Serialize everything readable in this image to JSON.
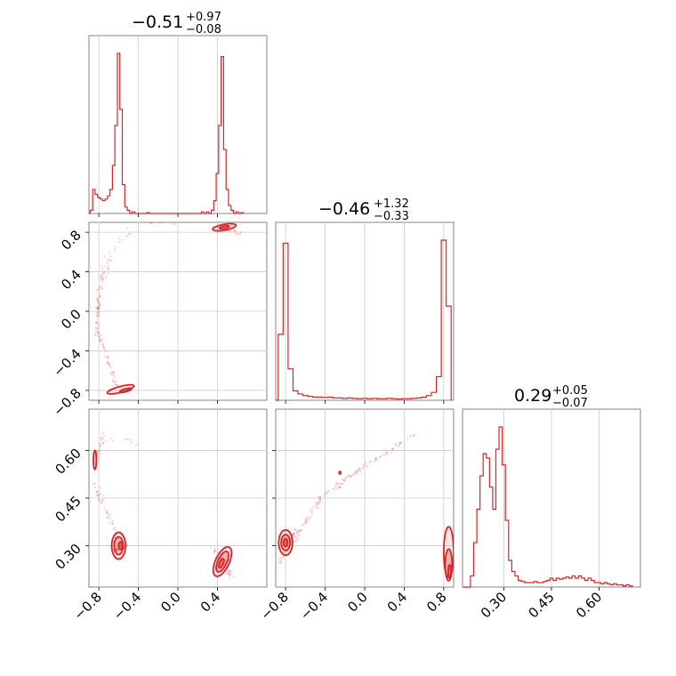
{
  "chart_data": {
    "type": "corner",
    "color": "#d62728",
    "parameters": [
      {
        "range": [
          -0.9,
          0.9
        ],
        "ticks": [
          -0.8,
          -0.4,
          0.0,
          0.4
        ],
        "tick_labels": [
          "−0.8",
          "−0.4",
          "0.0",
          "0.4"
        ],
        "title": {
          "median": "−0.51",
          "plus": "+0.97",
          "minus": "−0.08"
        },
        "hist_bin_width": 0.025,
        "hist": [
          [
            -0.875,
            0.02
          ],
          [
            -0.85,
            0.15
          ],
          [
            -0.825,
            0.12
          ],
          [
            -0.8,
            0.1
          ],
          [
            -0.775,
            0.09
          ],
          [
            -0.75,
            0.08
          ],
          [
            -0.725,
            0.09
          ],
          [
            -0.7,
            0.11
          ],
          [
            -0.675,
            0.15
          ],
          [
            -0.65,
            0.3
          ],
          [
            -0.625,
            0.55
          ],
          [
            -0.6,
            1.0
          ],
          [
            -0.575,
            0.65
          ],
          [
            -0.55,
            0.18
          ],
          [
            -0.525,
            0.04
          ],
          [
            -0.5,
            0.02
          ],
          [
            -0.45,
            0.01
          ],
          [
            -0.3,
            0.005
          ],
          [
            0.25,
            0.01
          ],
          [
            0.3,
            0.01
          ],
          [
            0.35,
            0.02
          ],
          [
            0.375,
            0.08
          ],
          [
            0.4,
            0.25
          ],
          [
            0.425,
            0.55
          ],
          [
            0.45,
            0.98
          ],
          [
            0.475,
            0.4
          ],
          [
            0.5,
            0.15
          ],
          [
            0.525,
            0.05
          ],
          [
            0.55,
            0.02
          ],
          [
            0.6,
            0.01
          ],
          [
            0.65,
            0.005
          ]
        ]
      },
      {
        "range": [
          -0.9,
          0.9
        ],
        "ticks": [
          -0.8,
          -0.4,
          0.0,
          0.4,
          0.8
        ],
        "tick_labels": [
          "−0.8",
          "−0.4",
          "0.0",
          "0.4",
          "0.8"
        ],
        "title": {
          "median": "−0.46",
          "plus": "+1.32",
          "minus": "−0.33"
        },
        "hist_bin_width": 0.05,
        "hist": [
          [
            -0.85,
            0.42
          ],
          [
            -0.8,
            1.0
          ],
          [
            -0.75,
            0.2
          ],
          [
            -0.7,
            0.06
          ],
          [
            -0.65,
            0.04
          ],
          [
            -0.6,
            0.03
          ],
          [
            -0.55,
            0.025
          ],
          [
            -0.5,
            0.02
          ],
          [
            -0.45,
            0.02
          ],
          [
            -0.4,
            0.018
          ],
          [
            -0.35,
            0.02
          ],
          [
            -0.3,
            0.015
          ],
          [
            -0.25,
            0.015
          ],
          [
            -0.2,
            0.012
          ],
          [
            -0.15,
            0.015
          ],
          [
            -0.1,
            0.012
          ],
          [
            -0.05,
            0.01
          ],
          [
            0.0,
            0.012
          ],
          [
            0.05,
            0.01
          ],
          [
            0.1,
            0.012
          ],
          [
            0.15,
            0.01
          ],
          [
            0.2,
            0.01
          ],
          [
            0.25,
            0.012
          ],
          [
            0.3,
            0.01
          ],
          [
            0.35,
            0.008
          ],
          [
            0.4,
            0.01
          ],
          [
            0.45,
            0.01
          ],
          [
            0.5,
            0.012
          ],
          [
            0.55,
            0.015
          ],
          [
            0.6,
            0.02
          ],
          [
            0.65,
            0.03
          ],
          [
            0.7,
            0.05
          ],
          [
            0.75,
            0.15
          ],
          [
            0.8,
            1.02
          ],
          [
            0.85,
            0.6
          ]
        ]
      },
      {
        "range": [
          0.17,
          0.73
        ],
        "ticks": [
          0.3,
          0.45,
          0.6
        ],
        "tick_labels": [
          "0.30",
          "0.45",
          "0.60"
        ],
        "title": {
          "median": "0.29",
          "plus": "+0.05",
          "minus": "−0.07"
        },
        "hist_bin_width": 0.01,
        "hist": [
          [
            0.2,
            0.05
          ],
          [
            0.21,
            0.2
          ],
          [
            0.22,
            0.35
          ],
          [
            0.23,
            0.5
          ],
          [
            0.24,
            0.6
          ],
          [
            0.25,
            0.58
          ],
          [
            0.26,
            0.45
          ],
          [
            0.27,
            0.35
          ],
          [
            0.28,
            0.62
          ],
          [
            0.29,
            0.72
          ],
          [
            0.3,
            0.55
          ],
          [
            0.31,
            0.3
          ],
          [
            0.32,
            0.12
          ],
          [
            0.33,
            0.07
          ],
          [
            0.34,
            0.05
          ],
          [
            0.35,
            0.03
          ],
          [
            0.36,
            0.025
          ],
          [
            0.37,
            0.02
          ],
          [
            0.38,
            0.02
          ],
          [
            0.39,
            0.02
          ],
          [
            0.4,
            0.025
          ],
          [
            0.41,
            0.02
          ],
          [
            0.42,
            0.02
          ],
          [
            0.43,
            0.025
          ],
          [
            0.44,
            0.03
          ],
          [
            0.45,
            0.04
          ],
          [
            0.46,
            0.03
          ],
          [
            0.47,
            0.04
          ],
          [
            0.48,
            0.035
          ],
          [
            0.49,
            0.04
          ],
          [
            0.5,
            0.045
          ],
          [
            0.51,
            0.04
          ],
          [
            0.52,
            0.05
          ],
          [
            0.53,
            0.04
          ],
          [
            0.54,
            0.05
          ],
          [
            0.55,
            0.04
          ],
          [
            0.56,
            0.03
          ],
          [
            0.57,
            0.04
          ],
          [
            0.58,
            0.03
          ],
          [
            0.59,
            0.02
          ],
          [
            0.6,
            0.02
          ],
          [
            0.61,
            0.015
          ],
          [
            0.62,
            0.02
          ],
          [
            0.63,
            0.015
          ],
          [
            0.64,
            0.01
          ],
          [
            0.65,
            0.015
          ],
          [
            0.66,
            0.01
          ],
          [
            0.67,
            0.01
          ],
          [
            0.68,
            0.005
          ],
          [
            0.69,
            0.01
          ],
          [
            0.7,
            0.005
          ]
        ]
      }
    ],
    "panels": [
      {
        "name": "p1-vs-p2",
        "contours": [
          {
            "cx": -0.58,
            "cy": -0.79,
            "rx": 0.14,
            "ry": 0.03,
            "rot": -15,
            "level": 1
          },
          {
            "cx": -0.53,
            "cy": -0.8,
            "rx": 0.06,
            "ry": 0.015,
            "rot": -15,
            "level": 2
          },
          {
            "cx": 0.47,
            "cy": 0.85,
            "rx": 0.12,
            "ry": 0.03,
            "rot": -10,
            "level": 1
          },
          {
            "cx": 0.47,
            "cy": 0.85,
            "rx": 0.05,
            "ry": 0.012,
            "rot": -10,
            "level": 2
          }
        ],
        "scatter": [
          {
            "from": [
              -0.62,
              -0.75
            ],
            "to": [
              -0.82,
              -0.2
            ],
            "n": 50,
            "spread": 0.04
          },
          {
            "from": [
              -0.82,
              -0.2
            ],
            "to": [
              -0.8,
              0.2
            ],
            "n": 40,
            "spread": 0.03
          },
          {
            "from": [
              -0.8,
              0.2
            ],
            "to": [
              -0.7,
              0.55
            ],
            "n": 30,
            "spread": 0.05
          },
          {
            "from": [
              -0.7,
              0.55
            ],
            "to": [
              -0.45,
              0.85
            ],
            "n": 15,
            "spread": 0.06
          },
          {
            "from": [
              -0.3,
              0.9
            ],
            "to": [
              0.3,
              0.9
            ],
            "n": 10,
            "spread": 0.03
          },
          {
            "from": [
              0.35,
              0.88
            ],
            "to": [
              0.65,
              0.78
            ],
            "n": 20,
            "spread": 0.03
          }
        ]
      },
      {
        "name": "p1-vs-p3",
        "contours": [
          {
            "cx": -0.6,
            "cy": 0.3,
            "rx": 0.07,
            "ry": 0.042,
            "rot": 0,
            "level": 1
          },
          {
            "cx": -0.6,
            "cy": 0.3,
            "rx": 0.045,
            "ry": 0.028,
            "rot": 0,
            "level": 2
          },
          {
            "cx": -0.58,
            "cy": 0.3,
            "rx": 0.02,
            "ry": 0.012,
            "rot": 0,
            "level": 3
          },
          {
            "cx": -0.84,
            "cy": 0.57,
            "rx": 0.015,
            "ry": 0.03,
            "rot": 0,
            "level": 1
          },
          {
            "cx": 0.45,
            "cy": 0.25,
            "rx": 0.07,
            "ry": 0.05,
            "rot": 25,
            "level": 1
          },
          {
            "cx": 0.45,
            "cy": 0.25,
            "rx": 0.045,
            "ry": 0.035,
            "rot": 25,
            "level": 2
          },
          {
            "cx": 0.44,
            "cy": 0.245,
            "rx": 0.02,
            "ry": 0.015,
            "rot": 25,
            "level": 3
          }
        ],
        "scatter": [
          {
            "from": [
              -0.85,
              0.55
            ],
            "to": [
              -0.75,
              0.65
            ],
            "n": 30,
            "spread": 0.04
          },
          {
            "from": [
              -0.85,
              0.5
            ],
            "to": [
              -0.65,
              0.35
            ],
            "n": 35,
            "spread": 0.05
          },
          {
            "from": [
              -0.7,
              0.28
            ],
            "to": [
              -0.5,
              0.3
            ],
            "n": 30,
            "spread": 0.04
          },
          {
            "from": [
              0.35,
              0.3
            ],
            "to": [
              0.55,
              0.2
            ],
            "n": 30,
            "spread": 0.04
          },
          {
            "from": [
              -0.75,
              0.64
            ],
            "to": [
              -0.3,
              0.62
            ],
            "n": 8,
            "spread": 0.06
          }
        ]
      },
      {
        "name": "p2-vs-p3",
        "contours": [
          {
            "cx": -0.8,
            "cy": 0.31,
            "rx": 0.07,
            "ry": 0.04,
            "rot": 0,
            "level": 1
          },
          {
            "cx": -0.8,
            "cy": 0.31,
            "rx": 0.045,
            "ry": 0.025,
            "rot": 0,
            "level": 2
          },
          {
            "cx": -0.8,
            "cy": 0.31,
            "rx": 0.02,
            "ry": 0.012,
            "rot": 0,
            "level": 3
          },
          {
            "cx": 0.85,
            "cy": 0.28,
            "rx": 0.05,
            "ry": 0.08,
            "rot": 0,
            "level": 1
          },
          {
            "cx": 0.85,
            "cy": 0.24,
            "rx": 0.035,
            "ry": 0.05,
            "rot": 0,
            "level": 2
          },
          {
            "cx": 0.86,
            "cy": 0.22,
            "rx": 0.015,
            "ry": 0.02,
            "rot": 0,
            "level": 3
          },
          {
            "cx": -0.25,
            "cy": 0.53,
            "rx": 0.01,
            "ry": 0.004,
            "rot": 0,
            "level": 2
          }
        ],
        "scatter": [
          {
            "from": [
              -0.75,
              0.3
            ],
            "to": [
              -0.45,
              0.45
            ],
            "n": 50,
            "spread": 0.05
          },
          {
            "from": [
              -0.45,
              0.45
            ],
            "to": [
              0.0,
              0.55
            ],
            "n": 50,
            "spread": 0.04
          },
          {
            "from": [
              0.0,
              0.55
            ],
            "to": [
              0.5,
              0.65
            ],
            "n": 40,
            "spread": 0.04
          },
          {
            "from": [
              -0.85,
              0.25
            ],
            "to": [
              -0.7,
              0.35
            ],
            "n": 30,
            "spread": 0.03
          }
        ]
      }
    ],
    "grid": true
  }
}
